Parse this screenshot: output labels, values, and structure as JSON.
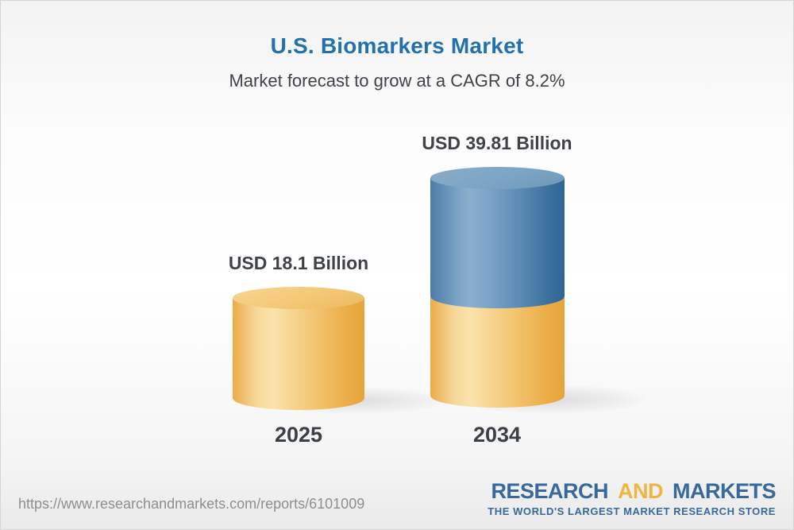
{
  "header": {
    "title": "U.S. Biomarkers Market",
    "subtitle": "Market forecast to grow at a CAGR of 8.2%"
  },
  "chart_data": {
    "type": "bar",
    "variant": "3d-cylinder",
    "categories": [
      "2025",
      "2034"
    ],
    "values": [
      18.1,
      39.81
    ],
    "value_labels": [
      "USD 18.1 Billion",
      "USD 39.81 Billion"
    ],
    "unit": "USD Billion",
    "cagr_pct": 8.2,
    "title": "U.S. Biomarkers Market",
    "subtitle": "Market forecast to grow at a CAGR of 8.2%",
    "ylim": [
      0,
      45
    ],
    "grid": "off",
    "legend": "none",
    "style_note": "2034 cylinder stacked: gold segment up to 18.1 (2025 base), blue segment for growth to 39.81",
    "bar_colors": {
      "gold": "#F0BE62",
      "blue": "#4E80AC"
    }
  },
  "footer": {
    "url": "https://www.researchandmarkets.com/reports/6101009",
    "logo": {
      "word1": "RESEARCH",
      "word2": "AND",
      "word3": "MARKETS",
      "tagline": "THE WORLD'S LARGEST MARKET RESEARCH STORE"
    }
  },
  "colors": {
    "title_blue": "#2271AD",
    "text_dark": "#3F4347",
    "url_gray": "#8E8E8E",
    "logo_blue": "#38699C",
    "logo_gold": "#F0B441"
  }
}
